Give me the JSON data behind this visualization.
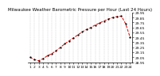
{
  "title": "Milwaukee Weather Barometric Pressure per Hour (Last 24 Hours)",
  "y_values": [
    29.05,
    29.0,
    28.98,
    29.02,
    29.08,
    29.12,
    29.18,
    29.25,
    29.32,
    29.38,
    29.44,
    29.5,
    29.56,
    29.61,
    29.65,
    29.7,
    29.74,
    29.78,
    29.82,
    29.85,
    29.87,
    29.88,
    29.72,
    29.45
  ],
  "x_labels": [
    "1",
    "2",
    "3",
    "4",
    "5",
    "6",
    "7",
    "8",
    "9",
    "10",
    "11",
    "12",
    "13",
    "14",
    "15",
    "16",
    "17",
    "18",
    "19",
    "20",
    "21",
    "22",
    "23",
    "24"
  ],
  "line_color": "#dd0000",
  "dot_color": "#000000",
  "grid_color": "#aaaaaa",
  "bg_color": "#ffffff",
  "title_fontsize": 4.0,
  "tick_fontsize": 3.2,
  "ylim_min": 28.95,
  "ylim_max": 29.95,
  "ytick_step": 0.1
}
